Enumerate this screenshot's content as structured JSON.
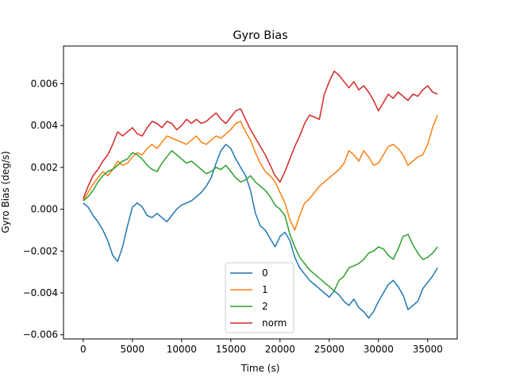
{
  "chart_data": {
    "type": "line",
    "title": "Gyro Bias",
    "xlabel": "Time (s)",
    "ylabel": "Gyro Bias (deg/s)",
    "xlim": [
      -2000,
      38000
    ],
    "ylim": [
      -0.0062,
      0.0078
    ],
    "xticks": [
      0,
      5000,
      10000,
      15000,
      20000,
      25000,
      30000,
      35000
    ],
    "yticks": [
      -0.006,
      -0.004,
      -0.002,
      0.0,
      0.002,
      0.004,
      0.006
    ],
    "xtick_labels": [
      "0",
      "5000",
      "10000",
      "15000",
      "20000",
      "25000",
      "30000",
      "35000"
    ],
    "ytick_labels": [
      "−0.006",
      "−0.004",
      "−0.002",
      "0.000",
      "0.002",
      "0.004",
      "0.006"
    ],
    "grid": false,
    "legend_position": "lower-center",
    "x": [
      0,
      500,
      1000,
      1500,
      2000,
      2500,
      3000,
      3500,
      4000,
      4500,
      5000,
      5500,
      6000,
      6500,
      7000,
      7500,
      8000,
      8500,
      9000,
      9500,
      10000,
      10500,
      11000,
      11500,
      12000,
      12500,
      13000,
      13500,
      14000,
      14500,
      15000,
      15500,
      16000,
      16500,
      17000,
      17500,
      18000,
      18500,
      19000,
      19500,
      20000,
      20500,
      21000,
      21500,
      22000,
      22500,
      23000,
      23500,
      24000,
      24500,
      25000,
      25500,
      26000,
      26500,
      27000,
      27500,
      28000,
      28500,
      29000,
      29500,
      30000,
      30500,
      31000,
      31500,
      32000,
      32500,
      33000,
      33500,
      34000,
      34500,
      35000,
      35500,
      36000
    ],
    "series": [
      {
        "name": "0",
        "color": "#1f77b4",
        "values": [
          0.0003,
          0.0001,
          -0.0003,
          -0.0006,
          -0.001,
          -0.0015,
          -0.0022,
          -0.0025,
          -0.0018,
          -0.0008,
          0.0001,
          0.0003,
          0.0001,
          -0.0003,
          -0.0004,
          -0.0002,
          -0.0004,
          -0.0006,
          -0.0003,
          0.0,
          0.0002,
          0.0003,
          0.0004,
          0.0006,
          0.0008,
          0.0011,
          0.0015,
          0.0022,
          0.0028,
          0.0031,
          0.0029,
          0.0024,
          0.002,
          0.0016,
          0.0009,
          -0.0002,
          -0.0008,
          -0.001,
          -0.0014,
          -0.0018,
          -0.0013,
          -0.0011,
          -0.0015,
          -0.0023,
          -0.0028,
          -0.0031,
          -0.0034,
          -0.0036,
          -0.0038,
          -0.004,
          -0.0042,
          -0.0039,
          -0.0041,
          -0.0044,
          -0.0046,
          -0.0043,
          -0.0047,
          -0.0049,
          -0.0052,
          -0.0049,
          -0.0044,
          -0.004,
          -0.0036,
          -0.0034,
          -0.0037,
          -0.0041,
          -0.0048,
          -0.0046,
          -0.0044,
          -0.0038,
          -0.0035,
          -0.0032,
          -0.0028
        ]
      },
      {
        "name": "1",
        "color": "#ff7f0e",
        "values": [
          0.0004,
          0.0008,
          0.0012,
          0.0015,
          0.0018,
          0.0016,
          0.0019,
          0.0023,
          0.0021,
          0.0022,
          0.0025,
          0.0027,
          0.0026,
          0.0029,
          0.0031,
          0.0029,
          0.0032,
          0.0035,
          0.0034,
          0.0033,
          0.0032,
          0.0031,
          0.0033,
          0.0035,
          0.0032,
          0.0031,
          0.0033,
          0.0035,
          0.0034,
          0.0036,
          0.0038,
          0.0041,
          0.0042,
          0.0037,
          0.0033,
          0.0027,
          0.0022,
          0.0018,
          0.0016,
          0.0013,
          0.0008,
          0.0003,
          -0.0005,
          -0.001,
          -0.0003,
          0.0003,
          0.0005,
          0.0008,
          0.0011,
          0.0013,
          0.0015,
          0.0017,
          0.0019,
          0.0022,
          0.0028,
          0.0026,
          0.0023,
          0.0028,
          0.0025,
          0.0021,
          0.0022,
          0.0026,
          0.003,
          0.0031,
          0.0029,
          0.0026,
          0.0021,
          0.0023,
          0.0025,
          0.0026,
          0.0031,
          0.0039,
          0.0045
        ]
      },
      {
        "name": "2",
        "color": "#2ca02c",
        "values": [
          0.0004,
          0.0006,
          0.0009,
          0.0013,
          0.0016,
          0.0018,
          0.0019,
          0.0021,
          0.0023,
          0.0024,
          0.0027,
          0.0026,
          0.0024,
          0.0021,
          0.0019,
          0.0018,
          0.0022,
          0.0025,
          0.0028,
          0.0026,
          0.0024,
          0.0022,
          0.0023,
          0.0021,
          0.0019,
          0.0017,
          0.0018,
          0.002,
          0.0019,
          0.0021,
          0.0018,
          0.0015,
          0.0013,
          0.0014,
          0.0016,
          0.0013,
          0.0011,
          0.0009,
          0.0006,
          0.0002,
          0.0,
          -0.0003,
          -0.0012,
          -0.0018,
          -0.0023,
          -0.0026,
          -0.0029,
          -0.0031,
          -0.0033,
          -0.0035,
          -0.0037,
          -0.0039,
          -0.0034,
          -0.0032,
          -0.0028,
          -0.0027,
          -0.0026,
          -0.0024,
          -0.0021,
          -0.002,
          -0.0018,
          -0.0019,
          -0.0022,
          -0.0024,
          -0.0019,
          -0.0013,
          -0.0012,
          -0.0017,
          -0.0021,
          -0.0024,
          -0.0023,
          -0.0021,
          -0.0018
        ]
      },
      {
        "name": "norm",
        "color": "#d62728",
        "values": [
          0.0005,
          0.0011,
          0.0016,
          0.0019,
          0.0023,
          0.0026,
          0.0031,
          0.0037,
          0.0035,
          0.0037,
          0.0039,
          0.0036,
          0.0035,
          0.0039,
          0.0042,
          0.0041,
          0.0039,
          0.0042,
          0.0041,
          0.0038,
          0.004,
          0.0043,
          0.0041,
          0.0043,
          0.0041,
          0.0042,
          0.0044,
          0.0046,
          0.0043,
          0.0041,
          0.0044,
          0.0047,
          0.0048,
          0.0043,
          0.0038,
          0.0034,
          0.003,
          0.0026,
          0.0021,
          0.0016,
          0.0013,
          0.0018,
          0.0024,
          0.003,
          0.0035,
          0.0041,
          0.0045,
          0.0044,
          0.0043,
          0.0055,
          0.0061,
          0.0066,
          0.0064,
          0.0061,
          0.0058,
          0.0061,
          0.0057,
          0.0059,
          0.0056,
          0.0052,
          0.0047,
          0.0051,
          0.0055,
          0.0053,
          0.0056,
          0.0054,
          0.0052,
          0.0055,
          0.0054,
          0.0057,
          0.0059,
          0.0056,
          0.0055
        ]
      }
    ]
  }
}
